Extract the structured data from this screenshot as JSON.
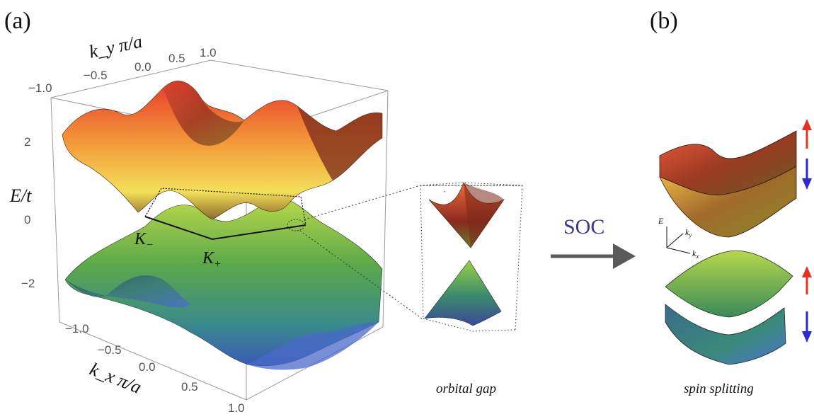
{
  "panel_labels": {
    "a": "(a)",
    "b": "(b)"
  },
  "axes": {
    "ky_title": "k_y π/a",
    "kx_title": "k_x π/a",
    "e_title": "E/t",
    "ky_ticks": [
      "−1.0",
      "−0.5",
      "0.0",
      "0.5",
      "1.0"
    ],
    "kx_ticks": [
      "−1.0",
      "−0.5",
      "0.0",
      "0.5",
      "1.0"
    ],
    "e_ticks": [
      "2",
      "0",
      "−2"
    ]
  },
  "points": {
    "k_minus": "K",
    "k_minus_sub": "−",
    "k_plus": "K",
    "k_plus_sub": "+"
  },
  "inset": {
    "caption": "orbital gap"
  },
  "arrow": {
    "label": "SOC"
  },
  "panel_b": {
    "caption": "spin splitting",
    "mini_axes": {
      "e": "E",
      "kx": "k",
      "kx_sub": "x",
      "ky": "k",
      "ky_sub": "y"
    }
  },
  "colors": {
    "spin_up": "#e8321e",
    "spin_down": "#2a2ad0",
    "arrow": "#5a5a5a",
    "soc_text": "#3a3a8c"
  }
}
